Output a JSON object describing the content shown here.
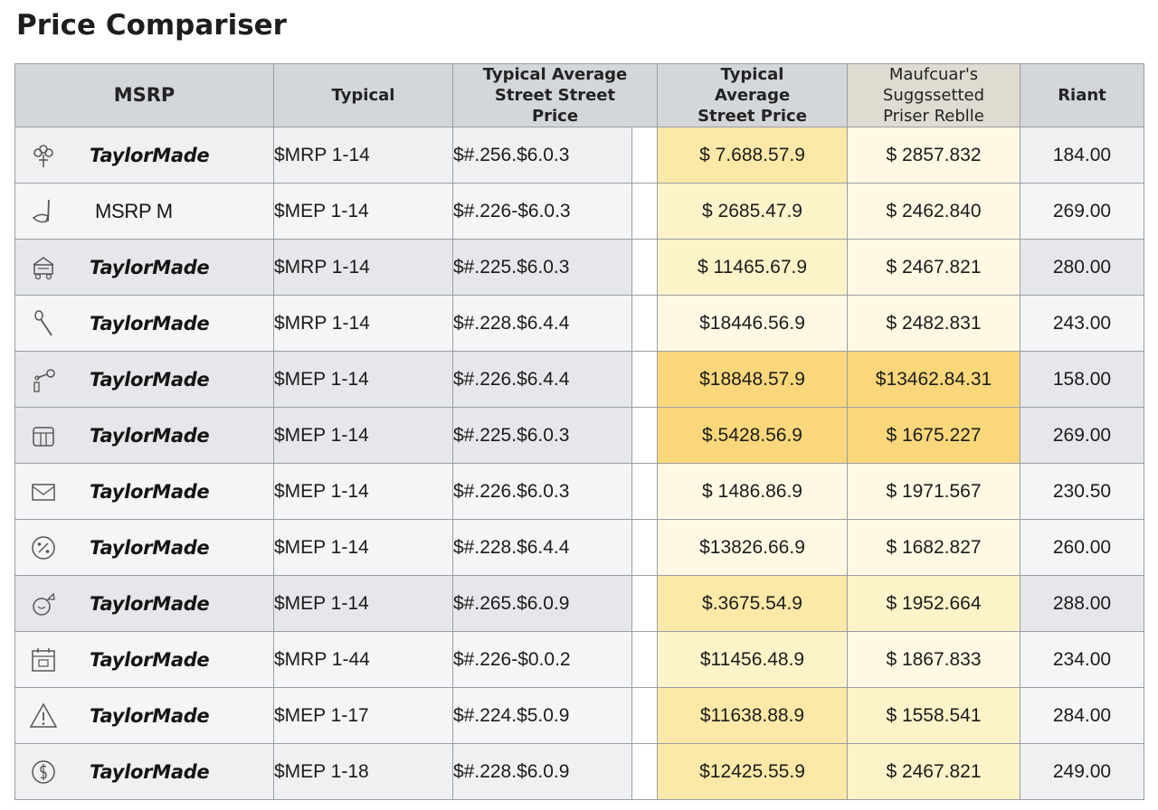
{
  "title": "Price Compariser",
  "headers": {
    "brand": "MSRP",
    "typical": "Typical",
    "street1": "Typical Average Street Street Price",
    "street2": "Typical Average Street Price",
    "mfr": "Maufcuar's Suggssetted Priser Reblle",
    "right": "Riant"
  },
  "rows": [
    {
      "icon": "flower-icon",
      "brand": "TaylorMade",
      "msrp": "$MRP 1-14",
      "street": "$#.256.$6.0.3",
      "avg": "$ 7.688.57.9",
      "mfr": "$ 2857.832",
      "right": "184.00"
    },
    {
      "icon": "club-icon",
      "brand": "MSRP M",
      "msrp": "$MEP 1-14",
      "street": "$#.226-$6.0.3",
      "avg": "$ 2685.47.9",
      "mfr": "$ 2462.840",
      "right": "269.00"
    },
    {
      "icon": "cart-icon",
      "brand": "TaylorMade",
      "msrp": "$MRP 1-14",
      "street": "$#.225.$6.0.3",
      "avg": "$ 11465.67.9",
      "mfr": "$ 2467.821",
      "right": "280.00"
    },
    {
      "icon": "driver-icon",
      "brand": "TaylorMade",
      "msrp": "$MRP 1-14",
      "street": "$#.228.$6.4.4",
      "avg": "$18446.56.9",
      "mfr": "$ 2482.831",
      "right": "243.00"
    },
    {
      "icon": "tee-icon",
      "brand": "TaylorMade",
      "msrp": "$MEP 1-14",
      "street": "$#.226.$6.4.4",
      "avg": "$18848.57.9",
      "mfr": "$13462.84.31",
      "right": "158.00"
    },
    {
      "icon": "bag-icon",
      "brand": "TaylorMade",
      "msrp": "$MEP 1-14",
      "street": "$#.225.$6.0.3",
      "avg": "$.5428.56.9",
      "mfr": "$ 1675.227",
      "right": "269.00"
    },
    {
      "icon": "mail-icon",
      "brand": "TaylorMade",
      "msrp": "$MEP 1-14",
      "street": "$#.226.$6.0.3",
      "avg": "$ 1486.86.9",
      "mfr": "$ 1971.567",
      "right": "230.50"
    },
    {
      "icon": "discount-icon",
      "brand": "TaylorMade",
      "msrp": "$MEP 1-14",
      "street": "$#.228.$6.4.4",
      "avg": "$13826.66.9",
      "mfr": "$ 1682.827",
      "right": "260.00"
    },
    {
      "icon": "ball-icon",
      "brand": "TaylorMade",
      "msrp": "$MEP 1-14",
      "street": "$#.265.$6.0.9",
      "avg": "$.3675.54.9",
      "mfr": "$ 1952.664",
      "right": "288.00"
    },
    {
      "icon": "calendar-icon",
      "brand": "TaylorMade",
      "msrp": "$MRP 1-44",
      "street": "$#.226-$0.0.2",
      "avg": "$11456.48.9",
      "mfr": "$ 1867.833",
      "right": "234.00"
    },
    {
      "icon": "warning-icon",
      "brand": "TaylorMade",
      "msrp": "$MEP 1-17",
      "street": "$#.224.$5.0.9",
      "avg": "$11638.88.9",
      "mfr": "$ 1558.541",
      "right": "284.00"
    },
    {
      "icon": "dollar-icon",
      "brand": "TaylorMade",
      "msrp": "$MEP 1-18",
      "street": "$#.228.$6.0.9",
      "avg": "$12425.55.9",
      "mfr": "$ 2467.821",
      "right": "249.00"
    }
  ]
}
